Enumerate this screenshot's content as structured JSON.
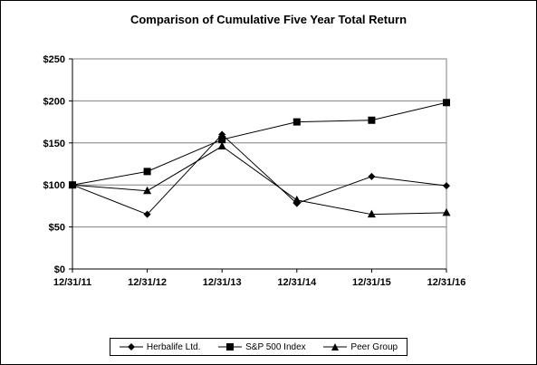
{
  "chart_data": {
    "type": "line",
    "title": "Comparison of Cumulative Five Year Total Return",
    "xlabel": "",
    "ylabel": "",
    "categories": [
      "12/31/11",
      "12/31/12",
      "12/31/13",
      "12/31/14",
      "12/31/15",
      "12/31/16"
    ],
    "y_ticks": [
      "$0",
      "$50",
      "$100",
      "$150",
      "$200",
      "$250"
    ],
    "ylim": [
      0,
      250
    ],
    "grid": true,
    "legend_position": "bottom",
    "series": [
      {
        "name": "Herbalife Ltd.",
        "marker": "diamond",
        "color": "#000000",
        "values": [
          100,
          65,
          160,
          78,
          110,
          99
        ]
      },
      {
        "name": "S&P 500 Index",
        "marker": "square",
        "color": "#000000",
        "values": [
          100,
          116,
          154,
          175,
          177,
          198
        ]
      },
      {
        "name": "Peer Group",
        "marker": "triangle",
        "color": "#000000",
        "values": [
          100,
          93,
          146,
          82,
          65,
          67
        ]
      }
    ]
  }
}
